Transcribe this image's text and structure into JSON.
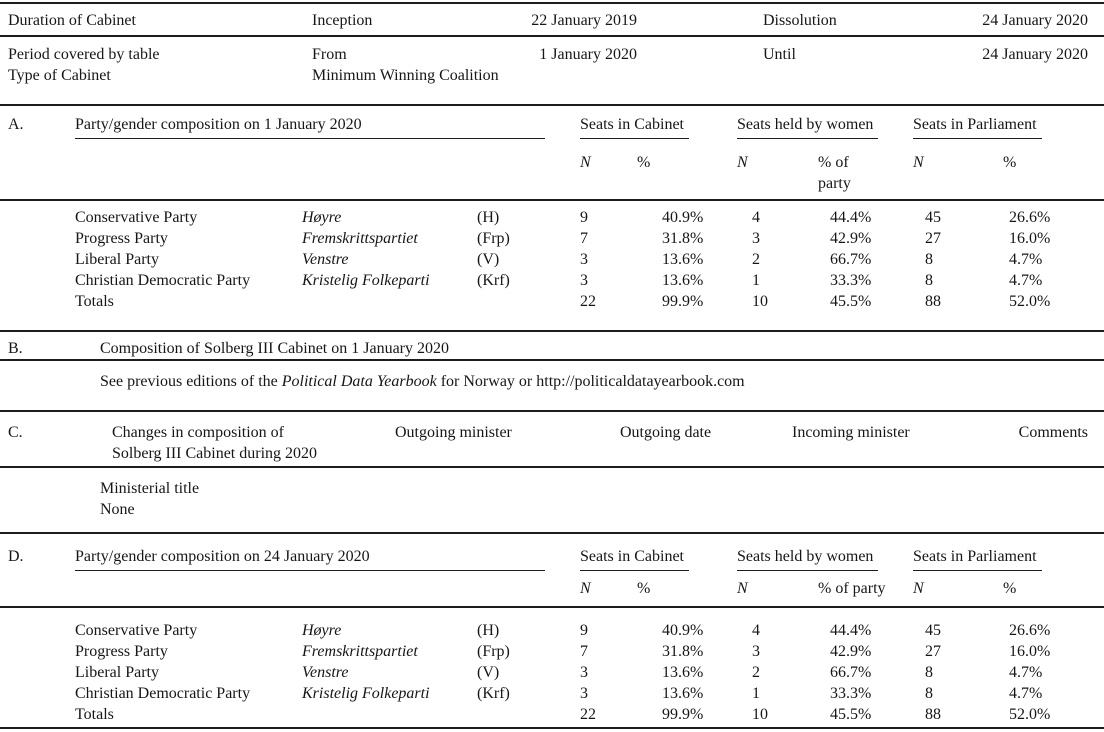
{
  "meta": {
    "duration_label": "Duration of Cabinet",
    "inception_label": "Inception",
    "inception_date": "22 January 2019",
    "dissolution_label": "Dissolution",
    "dissolution_date": "24 January 2020",
    "period_label": "Period covered by table",
    "from_label": "From",
    "from_date": "1 January 2020",
    "until_label": "Until",
    "until_date": "24 January 2020",
    "type_label": "Type of Cabinet",
    "type_value": "Minimum Winning Coalition"
  },
  "subheaders": {
    "n": "N",
    "pct": "%",
    "pct_of_party": "% of party"
  },
  "section_a": {
    "id": "A.",
    "title": "Party/gender composition on 1 January 2020",
    "groups": [
      "Seats in Cabinet",
      "Seats held by women",
      "Seats in Parliament"
    ],
    "rows": [
      {
        "name": "Conservative Party",
        "native": "Høyre",
        "abbr": "(H)",
        "cab_n": "9",
        "cab_pct": "40.9%",
        "wom_n": "4",
        "wom_pct": "44.4%",
        "parl_n": "45",
        "parl_pct": "26.6%"
      },
      {
        "name": "Progress Party",
        "native": "Fremskrittspartiet",
        "abbr": "(Frp)",
        "cab_n": "7",
        "cab_pct": "31.8%",
        "wom_n": "3",
        "wom_pct": "42.9%",
        "parl_n": "27",
        "parl_pct": "16.0%"
      },
      {
        "name": "Liberal Party",
        "native": "Venstre",
        "abbr": "(V)",
        "cab_n": "3",
        "cab_pct": "13.6%",
        "wom_n": "2",
        "wom_pct": "66.7%",
        "parl_n": "8",
        "parl_pct": "4.7%"
      },
      {
        "name": "Christian Democratic Party",
        "native": "Kristelig Folkeparti",
        "abbr": "(Krf)",
        "cab_n": "3",
        "cab_pct": "13.6%",
        "wom_n": "1",
        "wom_pct": "33.3%",
        "parl_n": "8",
        "parl_pct": "4.7%"
      },
      {
        "name": "Totals",
        "native": "",
        "abbr": "",
        "cab_n": "22",
        "cab_pct": "99.9%",
        "wom_n": "10",
        "wom_pct": "45.5%",
        "parl_n": "88",
        "parl_pct": "52.0%"
      }
    ]
  },
  "section_b": {
    "id": "B.",
    "title": "Composition of Solberg III Cabinet on 1 January 2020",
    "note_prefix": "See previous editions of the ",
    "note_italic": "Political Data Yearbook",
    "note_suffix": " for Norway or http://politicaldatayearbook.com"
  },
  "section_c": {
    "id": "C.",
    "title_line1": "Changes in composition of",
    "title_line2": "Solberg III Cabinet during 2020",
    "columns": [
      "Outgoing minister",
      "Outgoing date",
      "Incoming minister",
      "Comments"
    ],
    "row_label": "Ministerial title",
    "row_value": "None"
  },
  "section_d": {
    "id": "D.",
    "title": "Party/gender composition on 24 January 2020",
    "groups": [
      "Seats in Cabinet",
      "Seats held by women",
      "Seats in Parliament"
    ],
    "rows": [
      {
        "name": "Conservative Party",
        "native": "Høyre",
        "abbr": "(H)",
        "cab_n": "9",
        "cab_pct": "40.9%",
        "wom_n": "4",
        "wom_pct": "44.4%",
        "parl_n": "45",
        "parl_pct": "26.6%"
      },
      {
        "name": "Progress Party",
        "native": "Fremskrittspartiet",
        "abbr": "(Frp)",
        "cab_n": "7",
        "cab_pct": "31.8%",
        "wom_n": "3",
        "wom_pct": "42.9%",
        "parl_n": "27",
        "parl_pct": "16.0%"
      },
      {
        "name": "Liberal Party",
        "native": "Venstre",
        "abbr": "(V)",
        "cab_n": "3",
        "cab_pct": "13.6%",
        "wom_n": "2",
        "wom_pct": "66.7%",
        "parl_n": "8",
        "parl_pct": "4.7%"
      },
      {
        "name": "Christian Democratic Party",
        "native": "Kristelig Folkeparti",
        "abbr": "(Krf)",
        "cab_n": "3",
        "cab_pct": "13.6%",
        "wom_n": "1",
        "wom_pct": "33.3%",
        "parl_n": "8",
        "parl_pct": "4.7%"
      },
      {
        "name": "Totals",
        "native": "",
        "abbr": "",
        "cab_n": "22",
        "cab_pct": "99.9%",
        "wom_n": "10",
        "wom_pct": "45.5%",
        "parl_n": "88",
        "parl_pct": "52.0%"
      }
    ]
  }
}
